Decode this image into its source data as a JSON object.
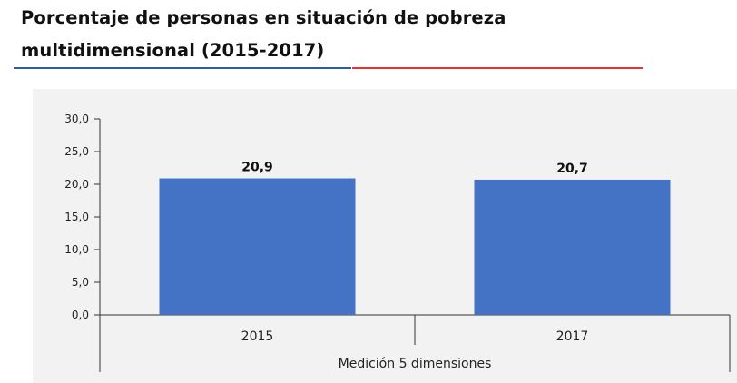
{
  "header": {
    "title_line1": "Porcentaje de personas en situación de pobreza",
    "title_line2": "multidimensional (2015-2017)"
  },
  "colors": {
    "bar": "#4472c4",
    "rule_left": "#2f5aa8",
    "rule_right": "#e0343a",
    "panel": "#f2f2f2"
  },
  "chart_data": {
    "type": "bar",
    "title": "Porcentaje de personas en situación de pobreza multidimensional (2015-2017)",
    "categories": [
      "2015",
      "2017"
    ],
    "values": [
      20.9,
      20.7
    ],
    "data_labels": [
      "20,9",
      "20,7"
    ],
    "group_label": "Medición 5 dimensiones",
    "ylim": [
      0,
      30
    ],
    "yticks": [
      "0,0",
      "5,0",
      "10,0",
      "15,0",
      "20,0",
      "25,0",
      "30,0"
    ],
    "grid": false,
    "legend": "none"
  }
}
